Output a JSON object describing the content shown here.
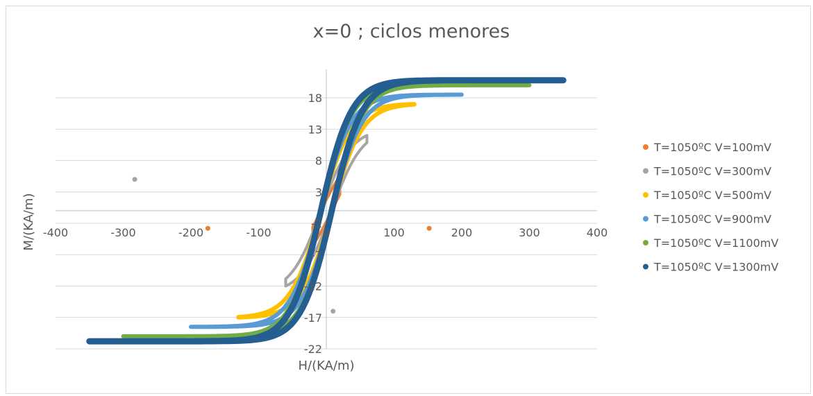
{
  "chart_data": {
    "type": "scatter",
    "title": "x=0 ; ciclos menores",
    "xlabel": "H/(KA/m)",
    "ylabel": "M/(KA/m)",
    "xlim": [
      -400,
      400
    ],
    "ylim": [
      -22,
      23
    ],
    "x_ticks": [
      "-400",
      "-300",
      "-200",
      "-100",
      "0",
      "100",
      "200",
      "300",
      "400"
    ],
    "y_ticks": [
      "-22",
      "-17",
      "-12",
      "-7",
      "-2",
      "3",
      "8",
      "13",
      "18"
    ],
    "grid": true,
    "legend_position": "right",
    "series": [
      {
        "name": "T=1050ºC V=100mV",
        "color": "#ED7D31",
        "hmax": 20,
        "msat": 5.5,
        "outliers": [
          [
            -175,
            -2.8
          ],
          [
            152,
            -2.8
          ]
        ]
      },
      {
        "name": "T=1050ºC V=300mV",
        "color": "#A5A5A5",
        "hmax": 60,
        "msat": 12,
        "outliers": [
          [
            -283,
            5
          ],
          [
            10,
            -16
          ]
        ]
      },
      {
        "name": "T=1050ºC V=500mV",
        "color": "#FFC000",
        "hmax": 130,
        "msat": 17,
        "outliers": []
      },
      {
        "name": "T=1050ºC V=900mV",
        "color": "#5B9BD5",
        "hmax": 200,
        "msat": 18.5,
        "outliers": []
      },
      {
        "name": "T=1050ºC V=1100mV",
        "color": "#70AD47",
        "hmax": 300,
        "msat": 20,
        "outliers": []
      },
      {
        "name": "T=1050ºC V=1300mV",
        "color": "#255E91",
        "hmax": 350,
        "msat": 20.8,
        "outliers": []
      }
    ]
  }
}
